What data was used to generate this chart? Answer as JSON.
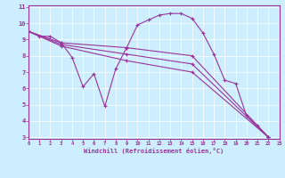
{
  "xlabel": "Windchill (Refroidissement éolien,°C)",
  "background_color": "#cceeff",
  "line_color": "#993399",
  "xlim": [
    0,
    23
  ],
  "ylim": [
    3,
    11
  ],
  "yticks": [
    3,
    4,
    5,
    6,
    7,
    8,
    9,
    10,
    11
  ],
  "xticks": [
    0,
    1,
    2,
    3,
    4,
    5,
    6,
    7,
    8,
    9,
    10,
    11,
    12,
    13,
    14,
    15,
    16,
    17,
    18,
    19,
    20,
    21,
    22,
    23
  ],
  "lines": [
    {
      "x": [
        0,
        1,
        2,
        3,
        4,
        5,
        6,
        7,
        8,
        9,
        10,
        11,
        12,
        13,
        14,
        15,
        16,
        17,
        18,
        19,
        20,
        21,
        22
      ],
      "y": [
        9.5,
        9.2,
        9.2,
        8.8,
        7.9,
        6.1,
        6.9,
        4.9,
        7.2,
        8.5,
        9.9,
        10.2,
        10.5,
        10.6,
        10.6,
        10.3,
        9.4,
        8.1,
        6.5,
        6.3,
        4.3,
        3.7,
        3.0
      ]
    },
    {
      "x": [
        0,
        3,
        9,
        15,
        22
      ],
      "y": [
        9.5,
        8.8,
        8.5,
        8.0,
        3.0
      ]
    },
    {
      "x": [
        0,
        3,
        9,
        15,
        22
      ],
      "y": [
        9.5,
        8.7,
        8.1,
        7.5,
        3.0
      ]
    },
    {
      "x": [
        0,
        3,
        9,
        15,
        22
      ],
      "y": [
        9.5,
        8.6,
        7.7,
        7.0,
        3.0
      ]
    }
  ]
}
